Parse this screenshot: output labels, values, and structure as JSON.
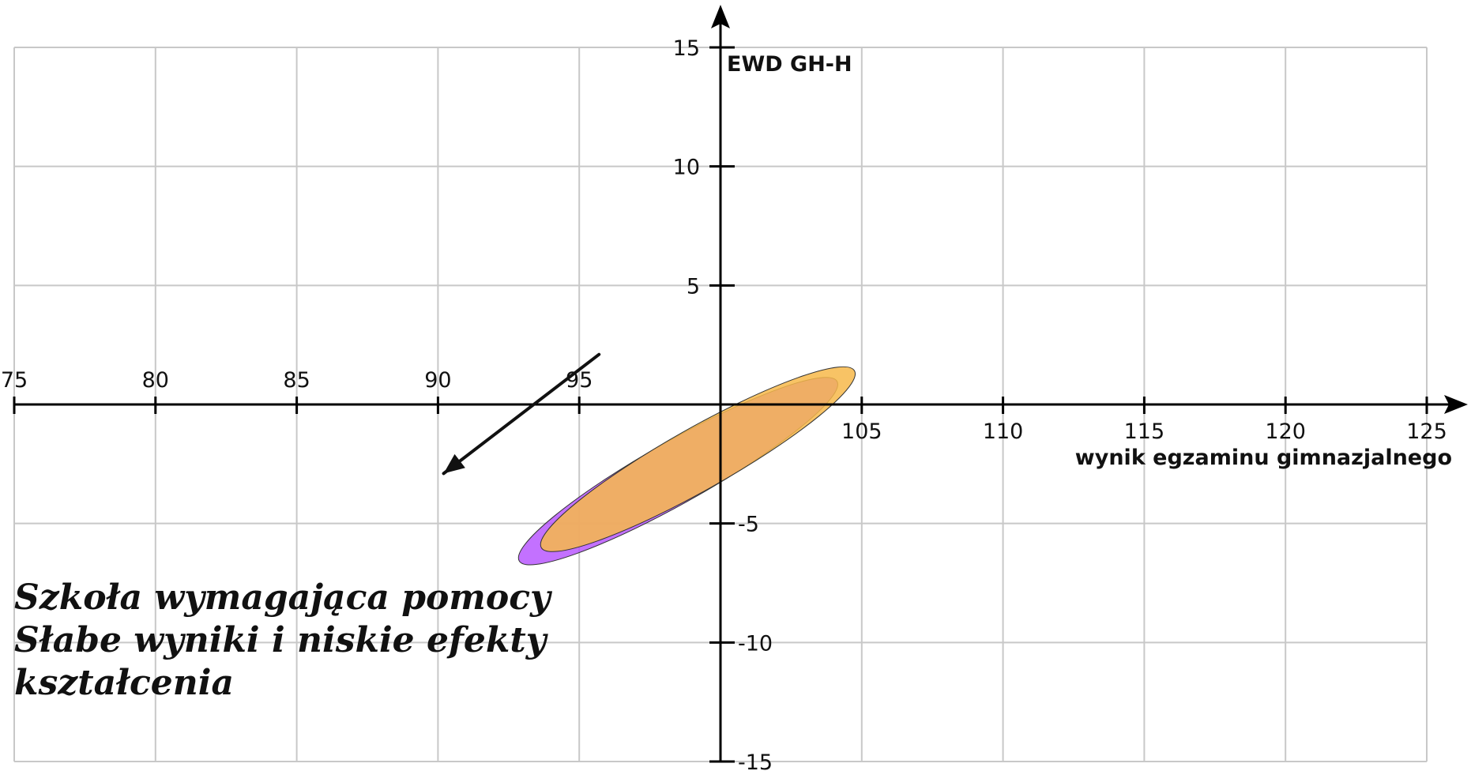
{
  "chart_data": {
    "type": "scatter",
    "xlabel": "wynik egzaminu gimnazjalnego",
    "ylabel": "EWD GH-H",
    "xlim": [
      75,
      125
    ],
    "ylim": [
      -15,
      15
    ],
    "x_ticks": [
      75,
      80,
      85,
      90,
      95,
      105,
      110,
      115,
      120,
      125
    ],
    "y_ticks": [
      15,
      10,
      5,
      -5,
      -10,
      -15
    ],
    "grid": true,
    "ellipses": [
      {
        "center_x": 98.5,
        "center_y": -2.8,
        "semi_axis_major": 6.8,
        "semi_axis_minor": 1.3,
        "color": "#b44dff",
        "opacity": 0.8
      },
      {
        "center_x": 99.2,
        "center_y": -2.3,
        "semi_axis_major": 6.7,
        "semi_axis_minor": 1.3,
        "color": "#f7b84a",
        "opacity": 0.85
      }
    ],
    "arrow": {
      "from": [
        95.7,
        2.1
      ],
      "to": [
        90.2,
        -2.9
      ],
      "color": "#111111"
    },
    "annotation": [
      "Szkoła wymagająca pomocy",
      "Słabe wyniki i niskie efekty",
      "kształcenia"
    ]
  }
}
